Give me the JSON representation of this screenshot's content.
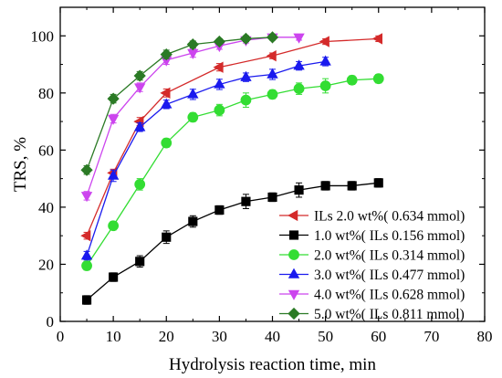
{
  "chart_data": {
    "type": "line",
    "title": "",
    "xlabel": "Hydrolysis reaction time, min",
    "ylabel": "TRS, %",
    "xlim": [
      0,
      80
    ],
    "ylim": [
      0,
      110
    ],
    "xticks": [
      0,
      10,
      20,
      30,
      40,
      50,
      60,
      70,
      80
    ],
    "yticks": [
      0,
      20,
      40,
      60,
      80,
      100
    ],
    "grid": false,
    "legend_position": "bottom-right",
    "series": [
      {
        "name": "ILs 2.0 wt%( 0.634 mmol)",
        "color": "#d42a2a",
        "marker": "triangle-left",
        "x": [
          5,
          10,
          15,
          20,
          30,
          40,
          50,
          60
        ],
        "y": [
          30,
          52,
          70,
          80,
          89,
          93,
          98,
          99
        ],
        "err": [
          1.2,
          1.3,
          1.4,
          1.4,
          1.3,
          1.0,
          1.0,
          1.0
        ]
      },
      {
        "name": "1.0 wt%( ILs 0.156 mmol)",
        "color": "#000000",
        "marker": "square",
        "x": [
          5,
          10,
          15,
          20,
          25,
          30,
          35,
          40,
          45,
          50,
          55,
          60
        ],
        "y": [
          7.5,
          15.5,
          21,
          29.5,
          35,
          39,
          42,
          43.5,
          46,
          47.5,
          47.5,
          48.5
        ],
        "err": [
          1.5,
          1.5,
          2.0,
          2.2,
          2.0,
          1.5,
          2.5,
          1.5,
          2.5,
          1.5,
          1.5,
          1.5
        ]
      },
      {
        "name": "2.0 wt%( ILs 0.314 mmol)",
        "color": "#33dd33",
        "marker": "circle",
        "x": [
          5,
          10,
          15,
          20,
          25,
          30,
          35,
          40,
          45,
          50,
          55,
          60
        ],
        "y": [
          19.5,
          33.5,
          48,
          62.5,
          71.5,
          74,
          77.5,
          79.5,
          81.5,
          82.5,
          84.5,
          85
        ],
        "err": [
          1.5,
          1.5,
          2.0,
          1.5,
          1.5,
          2.0,
          2.5,
          1.5,
          2.0,
          2.5,
          1.5,
          1.5
        ]
      },
      {
        "name": "3.0 wt%( ILs 0.477 mmol)",
        "color": "#1a1aee",
        "marker": "triangle-up",
        "x": [
          5,
          10,
          15,
          20,
          25,
          30,
          35,
          40,
          45,
          50
        ],
        "y": [
          23,
          51,
          68,
          76,
          79.5,
          83,
          85.5,
          86.5,
          89.5,
          91
        ],
        "err": [
          1.5,
          2.0,
          1.5,
          1.5,
          1.8,
          1.8,
          1.5,
          1.8,
          1.5,
          1.5
        ]
      },
      {
        "name": "4.0 wt%( ILs 0.628 mmol)",
        "color": "#cc44ee",
        "marker": "triangle-down",
        "x": [
          5,
          10,
          15,
          20,
          25,
          30,
          35,
          40,
          45
        ],
        "y": [
          44,
          71,
          82,
          91.5,
          94,
          96.5,
          98.5,
          99.5,
          99.5
        ],
        "err": [
          1.5,
          1.5,
          1.5,
          1.5,
          1.5,
          1.2,
          1.0,
          1.0,
          1.0
        ]
      },
      {
        "name": "5.0 wt%( ILs 0.811 mmol)",
        "color": "#2b7a25",
        "marker": "diamond",
        "x": [
          5,
          10,
          15,
          20,
          25,
          30,
          35,
          40
        ],
        "y": [
          53,
          78,
          86,
          93.5,
          97,
          98,
          99,
          99.5
        ],
        "err": [
          1.5,
          1.5,
          1.5,
          1.5,
          1.2,
          1.0,
          1.0,
          1.0
        ]
      }
    ]
  }
}
